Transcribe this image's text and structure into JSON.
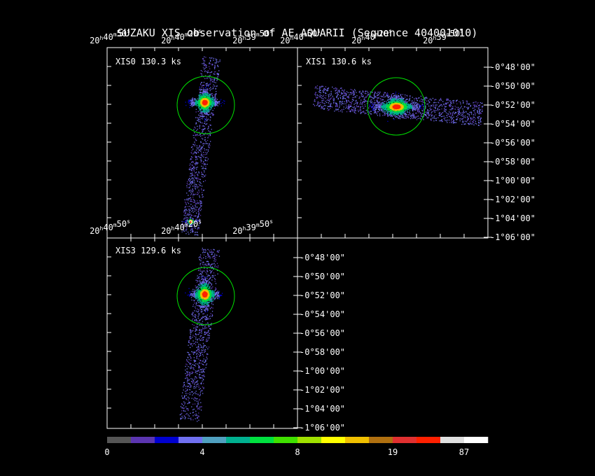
{
  "title": "SUZAKU XIS observation of AE AQUARII  (Sequence 404001010)",
  "panels": [
    {
      "label": "XIS0 130.3 ks",
      "ra_labels": [
        "20h40m50s",
        "20h40m20s",
        "20h39m50s"
      ]
    },
    {
      "label": "XIS1 130.6 ks",
      "ra_labels": [
        "20h40m50s",
        "20h40m20s",
        "20h39m50s"
      ],
      "dec_labels": [
        "-0°48'00\"",
        "-0°50'00\"",
        "-0°52'00\"",
        "-0°54'00\"",
        "-0°56'00\"",
        "-0°58'00\"",
        "-1°00'00\"",
        "-1°02'00\"",
        "-1°04'00\"",
        "-1°06'00\""
      ]
    },
    {
      "label": "XIS3 129.6 ks",
      "ra_labels": [
        "20h40m50s",
        "20h40m20s",
        "20h39m50s"
      ],
      "dec_labels": [
        "-0°48'00\"",
        "-0°50'00\"",
        "-0°52'00\"",
        "-0°54'00\"",
        "-0°56'00\"",
        "-0°58'00\"",
        "-1°00'00\"",
        "-1°02'00\"",
        "-1°04'00\"",
        "-1°06'00\""
      ]
    }
  ],
  "colorbar": {
    "colors": [
      "#555555",
      "#5b35b0",
      "#0000d0",
      "#7070f0",
      "#50a0c0",
      "#00b090",
      "#00e040",
      "#40e000",
      "#a0e000",
      "#ffff00",
      "#f0c000",
      "#b07010",
      "#e03030",
      "#ff2000",
      "#e0e0e0",
      "#ffffff"
    ],
    "labels": [
      "0",
      "4",
      "8",
      "19",
      "87"
    ]
  }
}
